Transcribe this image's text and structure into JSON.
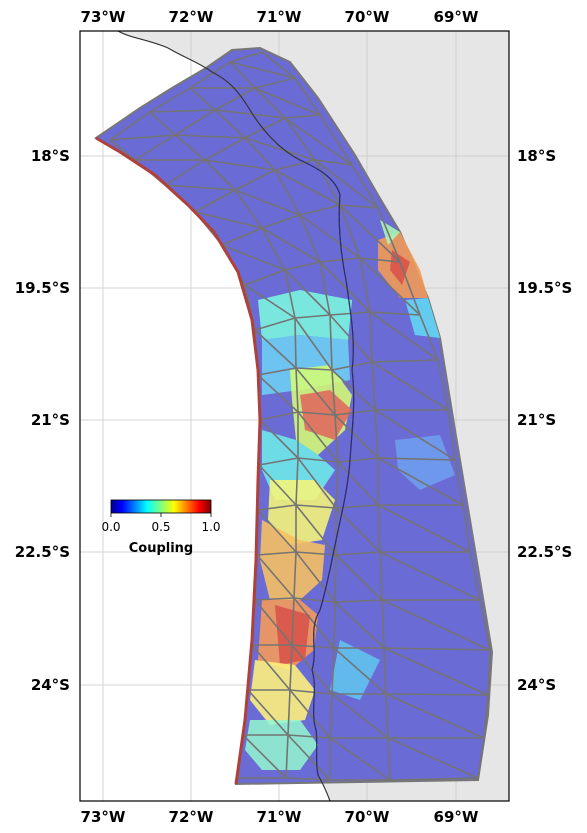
{
  "map": {
    "lon_labels": [
      "73°W",
      "72°W",
      "71°W",
      "70°W",
      "69°W"
    ],
    "lat_labels": [
      "18°S",
      "19.5°S",
      "21°S",
      "22.5°S",
      "24°S"
    ],
    "colors": {
      "land": "#e6e6e6",
      "ocean": "#ffffff",
      "mesh_edge": "#6e6e6e",
      "trench": "#c0392b",
      "coastline": "#333333",
      "low_coupling": "#6b6bd6"
    }
  },
  "colorbar": {
    "title": "Coupling",
    "ticks": [
      "0.0",
      "0.5",
      "1.0"
    ],
    "colormap": "jet"
  }
}
